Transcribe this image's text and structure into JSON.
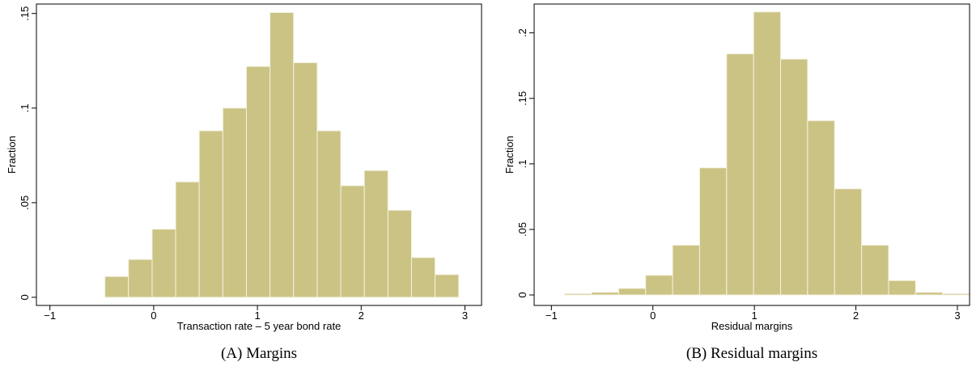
{
  "chart_data": [
    {
      "type": "histogram",
      "caption": "(A) Margins",
      "xlabel": "Transaction rate – 5 year bond rate",
      "ylabel": "Fraction",
      "bins": [
        -0.47,
        -0.243,
        -0.015,
        0.212,
        0.439,
        0.667,
        0.894,
        1.121,
        1.348,
        1.576,
        1.803,
        2.03,
        2.258,
        2.485,
        2.712,
        2.94
      ],
      "values": [
        0.011,
        0.02,
        0.036,
        0.061,
        0.088,
        0.1,
        0.122,
        0.1505,
        0.124,
        0.088,
        0.059,
        0.067,
        0.046,
        0.021,
        0.012
      ],
      "color": "#cbc384",
      "xlim": [
        -1.13,
        3.16
      ],
      "ylim": [
        -0.0043,
        0.155
      ],
      "xticks": [
        {
          "value": -1,
          "label": "−1"
        },
        0,
        1,
        2,
        3
      ],
      "yticks": [
        0,
        {
          "value": 0.05,
          "label": ".05"
        },
        {
          "value": 0.1,
          "label": ".1"
        },
        {
          "value": 0.15,
          "label": ".15"
        }
      ]
    },
    {
      "type": "histogram",
      "caption": "(B) Residual margins",
      "xlabel": "Residual margins",
      "ylabel": "Fraction",
      "bins": [
        -0.87,
        -0.604,
        -0.338,
        -0.072,
        0.194,
        0.46,
        0.726,
        0.992,
        1.258,
        1.524,
        1.79,
        2.056,
        2.322,
        2.588,
        2.854,
        3.12
      ],
      "values": [
        0.001,
        0.002,
        0.005,
        0.015,
        0.038,
        0.097,
        0.184,
        0.216,
        0.18,
        0.133,
        0.081,
        0.038,
        0.011,
        0.002,
        0.001
      ],
      "color": "#cbc384",
      "xlim": [
        -1.17,
        3.12
      ],
      "ylim": [
        -0.008,
        0.222
      ],
      "xticks": [
        {
          "value": -1,
          "label": "−1"
        },
        0,
        1,
        2,
        3
      ],
      "yticks": [
        0,
        {
          "value": 0.05,
          "label": ".05"
        },
        {
          "value": 0.1,
          "label": ".1"
        },
        {
          "value": 0.15,
          "label": ".15"
        },
        {
          "value": 0.2,
          "label": ".2"
        }
      ]
    }
  ]
}
